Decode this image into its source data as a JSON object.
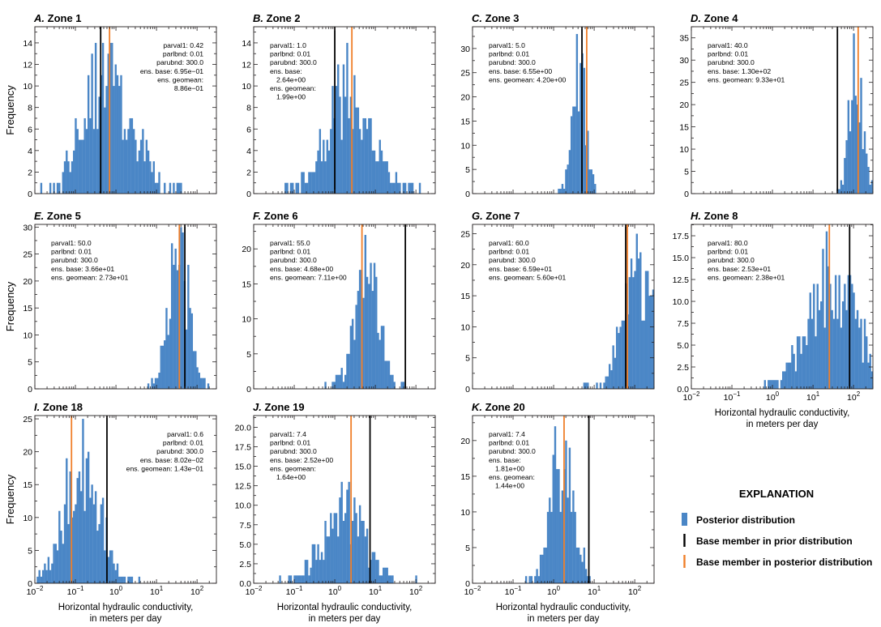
{
  "figure": {
    "xlabel_line1": "Horizontal hydraulic conductivity,",
    "xlabel_line2": "in meters per day",
    "ylabel": "Frequency",
    "colors": {
      "hist": "#4a86c6",
      "hist_edge": "#3a76b6",
      "prior_line": "#000000",
      "post_line": "#f07f2a",
      "axis": "#231f20"
    }
  },
  "legend": {
    "title": "EXPLANATION",
    "items": [
      {
        "label": "Posterior distribution",
        "kind": "hist"
      },
      {
        "label": "Base member in prior distribution",
        "kind": "prior"
      },
      {
        "label": "Base member in posterior distribution",
        "kind": "post"
      }
    ]
  },
  "chart_data": [
    {
      "id": "A",
      "letter": "A.",
      "zone": "Zone 1",
      "type": "histogram",
      "xscale": "log",
      "xlim": [
        0.01,
        300
      ],
      "ylim": [
        0,
        15.5
      ],
      "yticks": [
        0,
        2,
        4,
        6,
        8,
        10,
        12,
        14
      ],
      "ytick_labels": [
        "0",
        "2",
        "4",
        "6",
        "8",
        "10",
        "12",
        "14"
      ],
      "ann_align": "right",
      "annotations": [
        "parval1: 0.42",
        "parlbnd: 0.01",
        "parubnd: 300.0",
        "ens. base: 6.95e−01",
        "ens. geomean:",
        "8.86e−01"
      ],
      "prior_value": 0.42,
      "post_value": 0.695,
      "center": -0.16,
      "sd": 0.58,
      "peak": 14,
      "seed": 11
    },
    {
      "id": "B",
      "letter": "B.",
      "zone": "Zone 2",
      "type": "histogram",
      "xscale": "log",
      "xlim": [
        0.01,
        300
      ],
      "ylim": [
        0,
        15.5
      ],
      "yticks": [
        0,
        2,
        4,
        6,
        8,
        10,
        12,
        14
      ],
      "ytick_labels": [
        "0",
        "2",
        "4",
        "6",
        "8",
        "10",
        "12",
        "14"
      ],
      "ann_align": "left",
      "annotations": [
        "parval1: 1.0",
        "parlbnd: 0.01",
        "parubnd: 300.0",
        "ens. base:",
        "2.64e+00",
        "ens. geomean:",
        "1.99e+00"
      ],
      "prior_value": 1.0,
      "post_value": 2.64,
      "center": 0.35,
      "sd": 0.55,
      "peak": 14,
      "seed": 23
    },
    {
      "id": "C",
      "letter": "C.",
      "zone": "Zone 3",
      "type": "histogram",
      "xscale": "log",
      "xlim": [
        0.01,
        300
      ],
      "ylim": [
        0,
        34.5
      ],
      "yticks": [
        0,
        5,
        10,
        15,
        20,
        25,
        30
      ],
      "ytick_labels": [
        "0",
        "5",
        "10",
        "15",
        "20",
        "25",
        "30"
      ],
      "ann_align": "left",
      "annotations": [
        "parval1: 5.0",
        "parlbnd: 0.01",
        "parubnd: 300.0",
        "ens. base: 6.55e+00",
        "ens. geomean: 4.20e+00"
      ],
      "prior_value": 5.0,
      "post_value": 6.55,
      "center": 0.62,
      "sd": 0.16,
      "peak": 33,
      "seed": 37
    },
    {
      "id": "D",
      "letter": "D.",
      "zone": "Zone 4",
      "type": "histogram",
      "xscale": "log",
      "xlim": [
        0.01,
        300
      ],
      "ylim": [
        0,
        37.5
      ],
      "yticks": [
        0,
        5,
        10,
        15,
        20,
        25,
        30,
        35
      ],
      "ytick_labels": [
        "0",
        "5",
        "10",
        "15",
        "20",
        "25",
        "30",
        "35"
      ],
      "ann_align": "left",
      "annotations": [
        "parval1: 40.0",
        "parlbnd: 0.01",
        "parubnd: 300.0",
        "ens. base: 1.30e+02",
        "ens. geomean: 9.33e+01"
      ],
      "prior_value": 40.0,
      "post_value": 130.0,
      "center": 2.05,
      "sd": 0.17,
      "peak": 36,
      "seed": 41
    },
    {
      "id": "E",
      "letter": "E.",
      "zone": "Zone 5",
      "type": "histogram",
      "xscale": "log",
      "xlim": [
        0.01,
        300
      ],
      "ylim": [
        0,
        30.5
      ],
      "yticks": [
        0,
        5,
        10,
        15,
        20,
        25,
        30
      ],
      "ytick_labels": [
        "0",
        "5",
        "10",
        "15",
        "20",
        "25",
        "30"
      ],
      "ann_align": "left",
      "annotations": [
        "parval1: 50.0",
        "parlbnd: 0.01",
        "parubnd: 300.0",
        "ens. base: 3.66e+01",
        "ens. geomean: 2.73e+01"
      ],
      "prior_value": 50.0,
      "post_value": 36.6,
      "center": 1.55,
      "sd": 0.26,
      "peak": 30,
      "seed": 53
    },
    {
      "id": "F",
      "letter": "F.",
      "zone": "Zone 6",
      "type": "histogram",
      "xscale": "log",
      "xlim": [
        0.01,
        300
      ],
      "ylim": [
        0,
        23.5
      ],
      "yticks": [
        0,
        5,
        10,
        15,
        20
      ],
      "ytick_labels": [
        "0",
        "5",
        "10",
        "15",
        "20"
      ],
      "ann_align": "left",
      "annotations": [
        "parval1: 55.0",
        "parlbnd: 0.01",
        "parubnd: 300.0",
        "ens. base: 4.68e+00",
        "ens. geomean: 7.11e+00"
      ],
      "prior_value": 55.0,
      "post_value": 4.68,
      "center": 0.78,
      "sd": 0.3,
      "peak": 22,
      "seed": 67
    },
    {
      "id": "G",
      "letter": "G.",
      "zone": "Zone 7",
      "type": "histogram",
      "xscale": "log",
      "xlim": [
        0.01,
        300
      ],
      "ylim": [
        0,
        26.5
      ],
      "yticks": [
        0,
        5,
        10,
        15,
        20,
        25
      ],
      "ytick_labels": [
        "0",
        "5",
        "10",
        "15",
        "20",
        "25"
      ],
      "ann_align": "left",
      "annotations": [
        "parval1: 60.0",
        "parlbnd: 0.01",
        "parubnd: 300.0",
        "ens. base: 6.59e+01",
        "ens. geomean: 5.60e+01"
      ],
      "prior_value": 60.0,
      "post_value": 65.9,
      "center": 2.1,
      "sd": 0.38,
      "peak": 25,
      "seed": 71
    },
    {
      "id": "H",
      "letter": "H.",
      "zone": "Zone 8",
      "type": "histogram",
      "xscale": "log",
      "xlim": [
        0.01,
        300
      ],
      "ylim": [
        0,
        18.8
      ],
      "yticks": [
        0,
        2.5,
        5,
        7.5,
        10,
        12.5,
        15,
        17.5
      ],
      "ytick_labels": [
        "0.0",
        "2.5",
        "5.0",
        "7.5",
        "10.0",
        "12.5",
        "15.0",
        "17.5"
      ],
      "ann_align": "left",
      "annotations": [
        "parval1: 80.0",
        "parlbnd: 0.01",
        "parubnd: 300.0",
        "ens. base: 2.53e+01",
        "ens. geomean: 2.38e+01"
      ],
      "prior_value": 80.0,
      "post_value": 25.3,
      "center": 1.45,
      "sd": 0.55,
      "peak": 18,
      "seed": 83
    },
    {
      "id": "I",
      "letter": "I.",
      "zone": "Zone 18",
      "type": "histogram",
      "xscale": "log",
      "xlim": [
        0.01,
        300
      ],
      "ylim": [
        0,
        25.5
      ],
      "yticks": [
        0,
        5,
        10,
        15,
        20,
        25
      ],
      "ytick_labels": [
        "0",
        "5",
        "10",
        "15",
        "20",
        "25"
      ],
      "ann_align": "right",
      "annotations": [
        "parval1: 0.6",
        "parlbnd: 0.01",
        "parubnd: 300.0",
        "ens. base: 8.02e−02",
        "ens. geomean: 1.43e−01"
      ],
      "prior_value": 0.6,
      "post_value": 0.0802,
      "center": -0.85,
      "sd": 0.42,
      "peak": 25,
      "seed": 97
    },
    {
      "id": "J",
      "letter": "J.",
      "zone": "Zone 19",
      "type": "histogram",
      "xscale": "log",
      "xlim": [
        0.01,
        300
      ],
      "ylim": [
        0,
        21.5
      ],
      "yticks": [
        0,
        2.5,
        5,
        7.5,
        10,
        12.5,
        15,
        17.5,
        20
      ],
      "ytick_labels": [
        "0.0",
        "2.5",
        "5.0",
        "7.5",
        "10.0",
        "12.5",
        "15.0",
        "17.5",
        "20.0"
      ],
      "ann_align": "left",
      "annotations": [
        "parval1: 7.4",
        "parlbnd: 0.01",
        "parubnd: 300.0",
        "ens. base: 2.52e+00",
        "ens. geomean:",
        "1.64e+00"
      ],
      "prior_value": 7.4,
      "post_value": 2.52,
      "center": 0.2,
      "sd": 0.5,
      "peak": 13,
      "seed": 103
    },
    {
      "id": "K",
      "letter": "K.",
      "zone": "Zone 20",
      "type": "histogram",
      "xscale": "log",
      "xlim": [
        0.01,
        300
      ],
      "ylim": [
        0,
        23.5
      ],
      "yticks": [
        0,
        5,
        10,
        15,
        20
      ],
      "ytick_labels": [
        "0",
        "5",
        "10",
        "15",
        "20"
      ],
      "ann_align": "left",
      "annotations": [
        "parval1: 7.4",
        "parlbnd: 0.01",
        "parubnd: 300.0",
        "ens. base:",
        "1.81e+00",
        "ens. geomean:",
        "1.44e+00"
      ],
      "prior_value": 7.4,
      "post_value": 1.81,
      "center": 0.2,
      "sd": 0.3,
      "peak": 22,
      "seed": 109
    }
  ]
}
